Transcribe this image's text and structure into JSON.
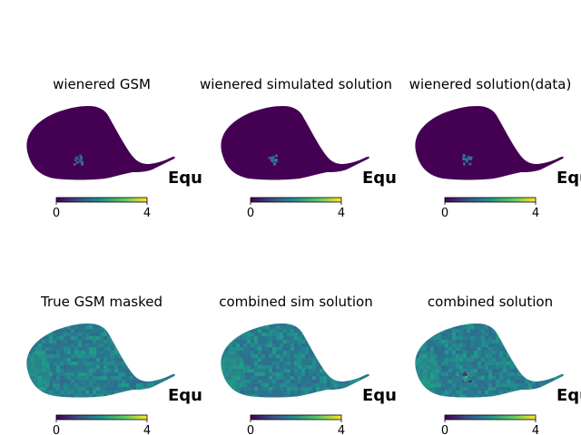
{
  "figure": {
    "background": "#ffffff"
  },
  "chart_data": [
    {
      "type": "heatmap",
      "title": "wienered GSM",
      "coord_label": "Equ",
      "colorbar": {
        "ticks": [
          "0",
          "4"
        ],
        "range": [
          0,
          4
        ]
      },
      "fill": "uniform-dark",
      "spot": true
    },
    {
      "type": "heatmap",
      "title": "wienered simulated solution",
      "coord_label": "Equ",
      "colorbar": {
        "ticks": [
          "0",
          "4"
        ],
        "range": [
          0,
          4
        ]
      },
      "fill": "uniform-dark",
      "spot": true
    },
    {
      "type": "heatmap",
      "title": "wienered solution(data)",
      "coord_label": "Equ",
      "colorbar": {
        "ticks": [
          "0",
          "4"
        ],
        "range": [
          0,
          4
        ]
      },
      "fill": "uniform-dark",
      "spot": true
    },
    {
      "type": "heatmap",
      "title": "True GSM masked",
      "coord_label": "Equ",
      "colorbar": {
        "ticks": [
          "0",
          "4"
        ],
        "range": [
          0,
          4
        ]
      },
      "fill": "teal-noise",
      "spot": false
    },
    {
      "type": "heatmap",
      "title": "combined sim solution",
      "coord_label": "Equ",
      "colorbar": {
        "ticks": [
          "0",
          "4"
        ],
        "range": [
          0,
          4
        ]
      },
      "fill": "teal-noise",
      "spot": false
    },
    {
      "type": "heatmap",
      "title": "combined solution",
      "coord_label": "Equ",
      "colorbar": {
        "ticks": [
          "0",
          "4"
        ],
        "range": [
          0,
          4
        ]
      },
      "fill": "teal-noise",
      "spot": true
    }
  ],
  "colormap": {
    "name": "viridis",
    "stops": [
      "#440154",
      "#3b528b",
      "#21918c",
      "#5ec962",
      "#fde725"
    ]
  }
}
